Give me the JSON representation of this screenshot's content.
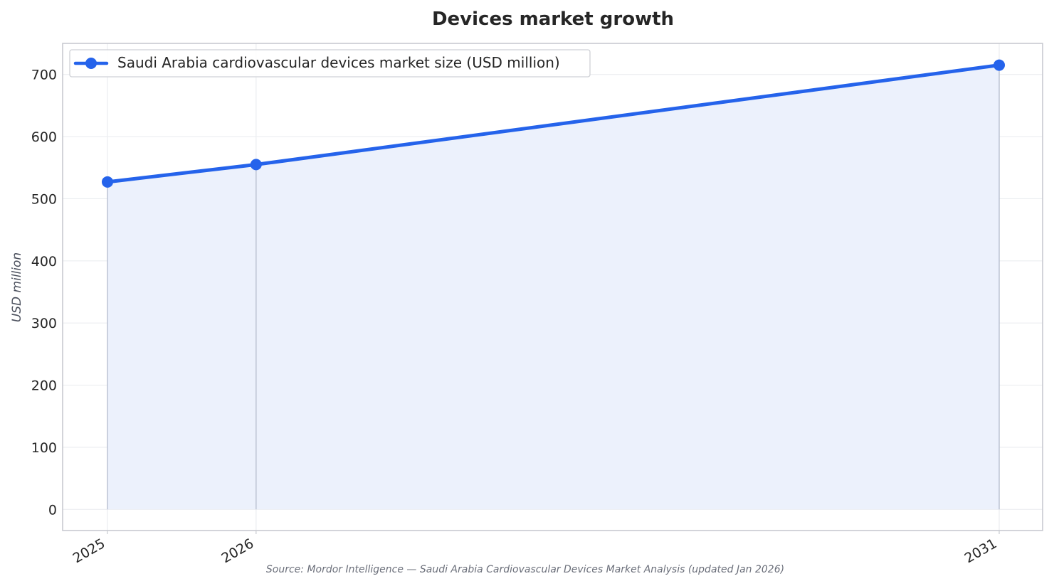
{
  "chart_data": {
    "type": "line",
    "title": "Devices market growth",
    "xlabel": "",
    "ylabel": "USD million",
    "categories": [
      "2025",
      "2026",
      "2031"
    ],
    "x": [
      2025,
      2026,
      2031
    ],
    "series": [
      {
        "name": "Saudi Arabia cardiovascular devices market size (USD million)",
        "values": [
          527,
          555,
          715
        ],
        "color": "#2563eb",
        "fill": "#ecf1fc"
      }
    ],
    "ylim": [
      -34,
      750
    ],
    "yticks": [
      0,
      100,
      200,
      300,
      400,
      500,
      600,
      700
    ],
    "grid": true,
    "legend_position": "top-left",
    "source": "Source: Mordor Intelligence — Saudi Arabia Cardiovascular Devices Market Analysis (updated Jan 2026)"
  }
}
